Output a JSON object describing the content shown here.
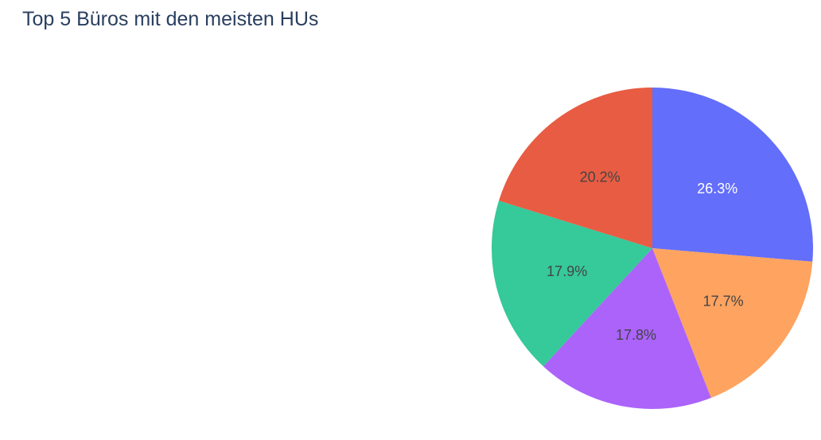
{
  "chart_data": {
    "type": "pie",
    "title": "Top 5 Büros mit den meisten HUs",
    "slices": [
      {
        "label": "26.3%",
        "value": 26.3,
        "color": "#636efa",
        "text_color": "#ffffff"
      },
      {
        "label": "17.7%",
        "value": 17.7,
        "color": "#fea360",
        "text_color": "#444444"
      },
      {
        "label": "17.8%",
        "value": 17.8,
        "color": "#ab63fa",
        "text_color": "#444444"
      },
      {
        "label": "17.9%",
        "value": 17.9,
        "color": "#36c99a",
        "text_color": "#444444"
      },
      {
        "label": "20.2%",
        "value": 20.2,
        "color": "#e85c43",
        "text_color": "#444444"
      }
    ],
    "start": "12 o'clock",
    "direction": "clockwise",
    "legend": "none"
  }
}
